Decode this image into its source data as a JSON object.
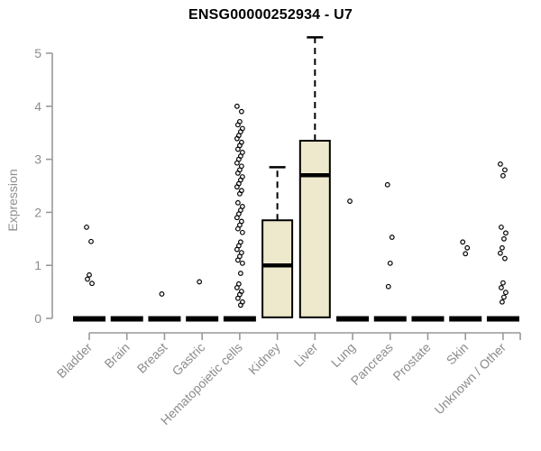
{
  "chart": {
    "title": "ENSG00000252934 - U7",
    "y_axis_label": "Expression"
  },
  "chart_data": {
    "type": "box",
    "title": "ENSG00000252934 - U7",
    "xlabel": "",
    "ylabel": "Expression",
    "ylim": [
      0,
      5
    ],
    "y_ticks": [
      0,
      1,
      2,
      3,
      4,
      5
    ],
    "grid": false,
    "legend": "none",
    "colors": {
      "box_fill": "#EEE8CD",
      "box_stroke": "#000000",
      "median": "#000000",
      "axis": "#999999",
      "tick_label": "#8C8C8C",
      "title": "#000000",
      "background": "#FFFFFF"
    },
    "categories": [
      "Bladder",
      "Brain",
      "Breast",
      "Gastric",
      "Hematopoietic cells",
      "Kidney",
      "Liver",
      "Lung",
      "Pancreas",
      "Prostate",
      "Skin",
      "Unknown / Other"
    ],
    "series": [
      {
        "label": "Bladder",
        "min": 0,
        "q1": 0,
        "median": 0,
        "q3": 0,
        "max": 0,
        "outliers": [
          1.72,
          1.45,
          0.82,
          0.74,
          0.66
        ]
      },
      {
        "label": "Brain",
        "min": 0,
        "q1": 0,
        "median": 0,
        "q3": 0,
        "max": 0,
        "outliers": []
      },
      {
        "label": "Breast",
        "min": 0,
        "q1": 0,
        "median": 0,
        "q3": 0,
        "max": 0,
        "outliers": [
          0.46
        ]
      },
      {
        "label": "Gastric",
        "min": 0,
        "q1": 0,
        "median": 0,
        "q3": 0,
        "max": 0,
        "outliers": [
          0.69
        ]
      },
      {
        "label": "Hematopoietic cells",
        "min": 0,
        "q1": 0,
        "median": 0,
        "q3": 0,
        "max": 0,
        "outliers": [
          4.0,
          3.9,
          3.71,
          3.65,
          3.58,
          3.52,
          3.45,
          3.39,
          3.32,
          3.26,
          3.19,
          3.13,
          3.06,
          3.0,
          2.93,
          2.87,
          2.8,
          2.74,
          2.67,
          2.61,
          2.54,
          2.48,
          2.41,
          2.35,
          2.18,
          2.11,
          2.04,
          1.97,
          1.9,
          1.83,
          1.76,
          1.69,
          1.62,
          1.44,
          1.37,
          1.3,
          1.24,
          1.17,
          1.1,
          1.04,
          0.85,
          0.65,
          0.58,
          0.51,
          0.45,
          0.38,
          0.31,
          0.25
        ]
      },
      {
        "label": "Kidney",
        "min": 0,
        "q1": 0.02,
        "median": 1.0,
        "q3": 1.85,
        "max": 2.85,
        "outliers": []
      },
      {
        "label": "Liver",
        "min": 0,
        "q1": 0.02,
        "median": 2.7,
        "q3": 3.35,
        "max": 5.3,
        "outliers": []
      },
      {
        "label": "Lung",
        "min": 0,
        "q1": 0,
        "median": 0,
        "q3": 0,
        "max": 0,
        "outliers": [
          2.21
        ]
      },
      {
        "label": "Pancreas",
        "min": 0,
        "q1": 0,
        "median": 0,
        "q3": 0,
        "max": 0,
        "outliers": [
          2.52,
          1.53,
          1.04,
          0.6
        ]
      },
      {
        "label": "Prostate",
        "min": 0,
        "q1": 0,
        "median": 0,
        "q3": 0,
        "max": 0,
        "outliers": []
      },
      {
        "label": "Skin",
        "min": 0,
        "q1": 0,
        "median": 0,
        "q3": 0,
        "max": 0,
        "outliers": [
          1.44,
          1.33,
          1.22
        ]
      },
      {
        "label": "Unknown / Other",
        "min": 0,
        "q1": 0,
        "median": 0,
        "q3": 0,
        "max": 0,
        "outliers": [
          2.91,
          2.8,
          2.69,
          1.72,
          1.61,
          1.5,
          1.33,
          1.23,
          1.13,
          0.67,
          0.58,
          0.49,
          0.4,
          0.31
        ]
      }
    ]
  }
}
